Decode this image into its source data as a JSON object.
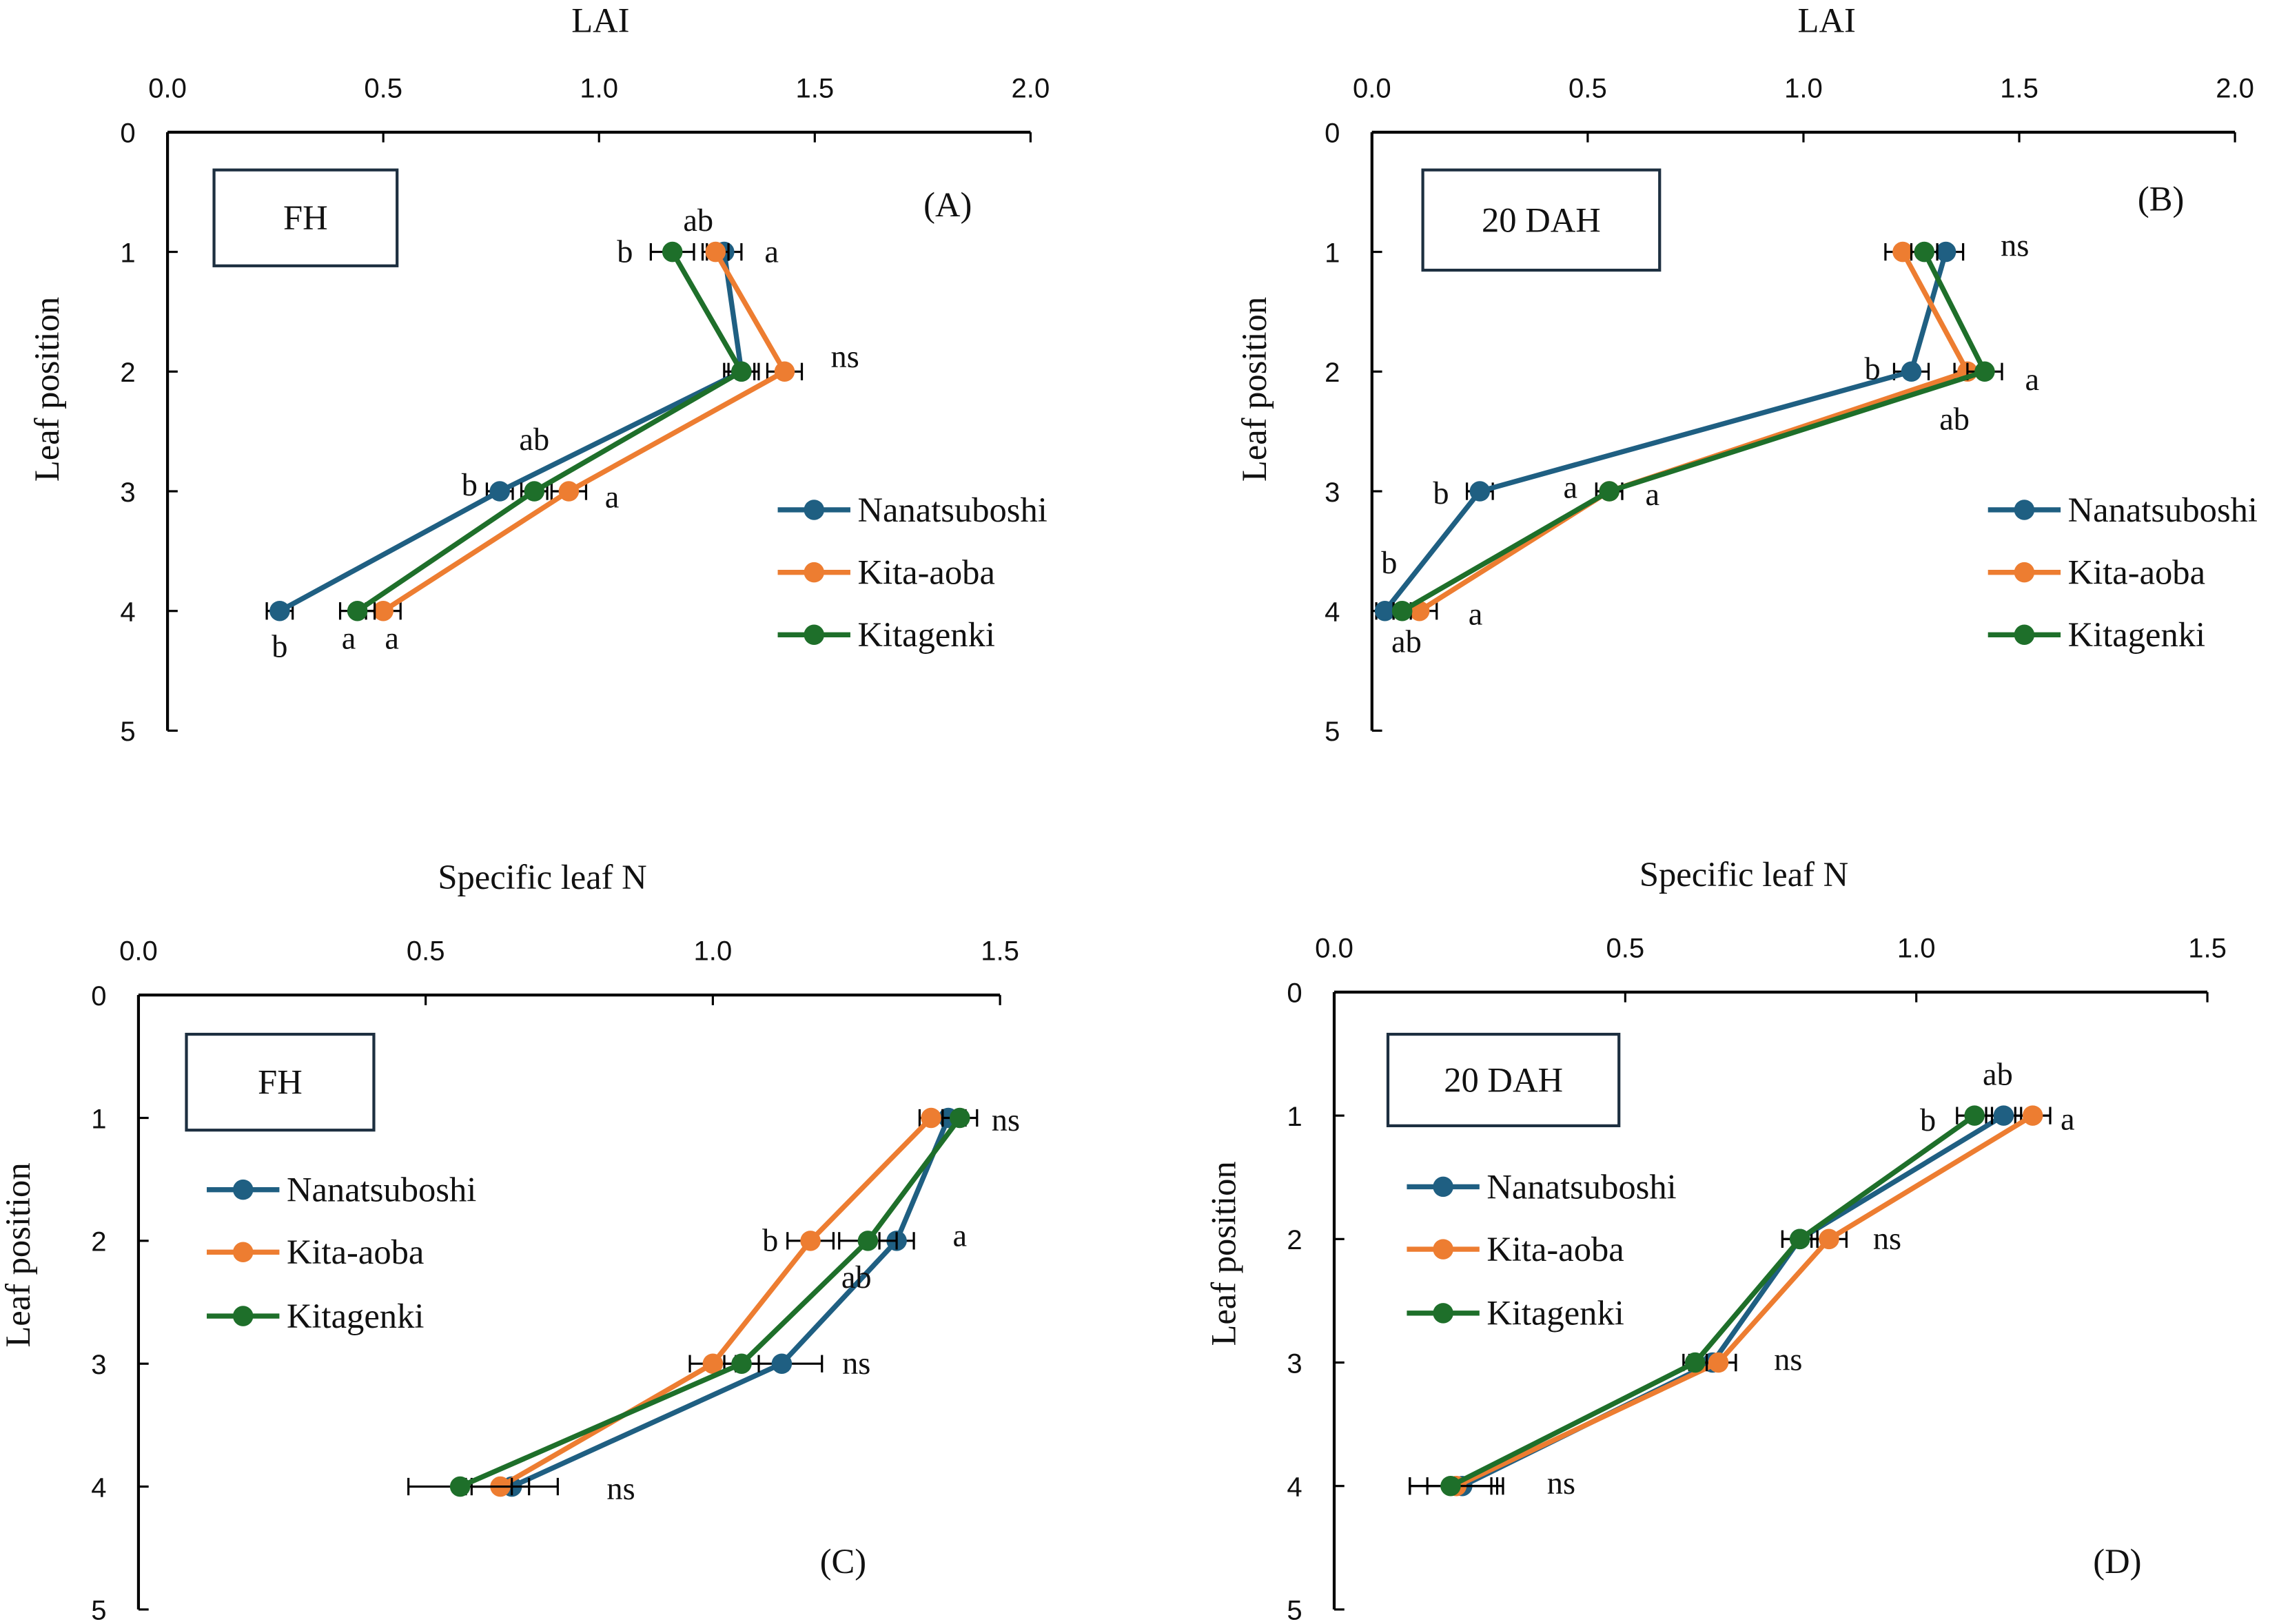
{
  "colors": {
    "Nanatsuboshi": "#1f5f82",
    "Kita-aoba": "#ed7d31",
    "Kitagenki": "#1e6f2a"
  },
  "chart_data": [
    {
      "type": "line",
      "panel": "(A)",
      "title": "FH",
      "xlabel": "LAI",
      "ylabel": "Leaf position",
      "xlim": [
        0,
        2.0
      ],
      "xticks": [
        "0.0",
        "0.5",
        "1.0",
        "1.5",
        "2.0"
      ],
      "ylim": [
        0,
        5
      ],
      "yticks": [
        "0",
        "1",
        "2",
        "3",
        "4",
        "5"
      ],
      "legend": [
        "Nanatsuboshi",
        "Kita-aoba",
        "Kitagenki"
      ],
      "legend_position": "right",
      "series": [
        {
          "name": "Nanatsuboshi",
          "x": [
            1.29,
            1.33,
            0.77,
            0.26
          ],
          "y": [
            1,
            2,
            3,
            4
          ],
          "err": [
            0.04,
            0.04,
            0.03,
            0.03
          ]
        },
        {
          "name": "Kita-aoba",
          "x": [
            1.27,
            1.43,
            0.93,
            0.5
          ],
          "y": [
            1,
            2,
            3,
            4
          ],
          "err": [
            0.03,
            0.04,
            0.04,
            0.04
          ]
        },
        {
          "name": "Kitagenki",
          "x": [
            1.17,
            1.33,
            0.85,
            0.44
          ],
          "y": [
            1,
            2,
            3,
            4
          ],
          "err": [
            0.05,
            0.03,
            0.03,
            0.04
          ]
        }
      ],
      "annotations": [
        {
          "text": "ab",
          "x": 1.23,
          "y": 0.74
        },
        {
          "text": "b",
          "x": 1.06,
          "y": 1.0
        },
        {
          "text": "a",
          "x": 1.4,
          "y": 1.0
        },
        {
          "text": "ns",
          "x": 1.57,
          "y": 1.88
        },
        {
          "text": "ab",
          "x": 0.85,
          "y": 2.57
        },
        {
          "text": "b",
          "x": 0.7,
          "y": 2.95
        },
        {
          "text": "a",
          "x": 1.03,
          "y": 3.05
        },
        {
          "text": "b",
          "x": 0.26,
          "y": 4.3
        },
        {
          "text": "a",
          "x": 0.42,
          "y": 4.23
        },
        {
          "text": "a",
          "x": 0.52,
          "y": 4.23
        }
      ]
    },
    {
      "type": "line",
      "panel": "(B)",
      "title": "20 DAH",
      "xlabel": "LAI",
      "ylabel": "Leaf position",
      "xlim": [
        0,
        2.0
      ],
      "xticks": [
        "0.0",
        "0.5",
        "1.0",
        "1.5",
        "2.0"
      ],
      "ylim": [
        0,
        5
      ],
      "yticks": [
        "0",
        "1",
        "2",
        "3",
        "4",
        "5"
      ],
      "legend": [
        "Nanatsuboshi",
        "Kita-aoba",
        "Kitagenki"
      ],
      "legend_position": "right",
      "series": [
        {
          "name": "Nanatsuboshi",
          "x": [
            1.33,
            1.25,
            0.25,
            0.03
          ],
          "y": [
            1,
            2,
            3,
            4
          ],
          "err": [
            0.04,
            0.04,
            0.03,
            0.02
          ]
        },
        {
          "name": "Kita-aoba",
          "x": [
            1.23,
            1.38,
            0.55,
            0.11
          ],
          "y": [
            1,
            2,
            3,
            4
          ],
          "err": [
            0.04,
            0.03,
            0.03,
            0.04
          ]
        },
        {
          "name": "Kitagenki",
          "x": [
            1.28,
            1.42,
            0.55,
            0.07
          ],
          "y": [
            1,
            2,
            3,
            4
          ],
          "err": [
            0.03,
            0.04,
            0.03,
            0.02
          ]
        }
      ],
      "annotations": [
        {
          "text": "ns",
          "x": 1.49,
          "y": 0.95
        },
        {
          "text": "b",
          "x": 1.16,
          "y": 1.98
        },
        {
          "text": "a",
          "x": 1.53,
          "y": 2.07
        },
        {
          "text": "ab",
          "x": 1.35,
          "y": 2.4
        },
        {
          "text": "b",
          "x": 0.16,
          "y": 3.02
        },
        {
          "text": "a",
          "x": 0.46,
          "y": 2.97
        },
        {
          "text": "a",
          "x": 0.65,
          "y": 3.03
        },
        {
          "text": "b",
          "x": 0.04,
          "y": 3.6
        },
        {
          "text": "a",
          "x": 0.24,
          "y": 4.03
        },
        {
          "text": "ab",
          "x": 0.08,
          "y": 4.26
        }
      ]
    },
    {
      "type": "line",
      "panel": "(C)",
      "title": "FH",
      "xlabel": "Specific leaf N",
      "ylabel": "Leaf position",
      "xlim": [
        0,
        1.5
      ],
      "xticks": [
        "0.0",
        "0.5",
        "1.0",
        "1.5"
      ],
      "ylim": [
        0,
        5
      ],
      "yticks": [
        "0",
        "1",
        "2",
        "3",
        "4",
        "5"
      ],
      "legend": [
        "Nanatsuboshi",
        "Kita-aoba",
        "Kitagenki"
      ],
      "legend_position": "left",
      "series": [
        {
          "name": "Nanatsuboshi",
          "x": [
            1.41,
            1.32,
            1.12,
            0.65
          ],
          "y": [
            1,
            2,
            3,
            4
          ],
          "err": [
            0.03,
            0.03,
            0.07,
            0.08
          ]
        },
        {
          "name": "Kita-aoba",
          "x": [
            1.38,
            1.17,
            1.0,
            0.63
          ],
          "y": [
            1,
            2,
            3,
            4
          ],
          "err": [
            0.02,
            0.04,
            0.04,
            0.05
          ]
        },
        {
          "name": "Kitagenki",
          "x": [
            1.43,
            1.27,
            1.05,
            0.56
          ],
          "y": [
            1,
            2,
            3,
            4
          ],
          "err": [
            0.03,
            0.05,
            0.03,
            0.09
          ]
        }
      ],
      "annotations": [
        {
          "text": "ns",
          "x": 1.51,
          "y": 1.02
        },
        {
          "text": "b",
          "x": 1.1,
          "y": 2.0
        },
        {
          "text": "a",
          "x": 1.43,
          "y": 1.96
        },
        {
          "text": "ab",
          "x": 1.25,
          "y": 2.3
        },
        {
          "text": "ns",
          "x": 1.25,
          "y": 3.0
        },
        {
          "text": "ns",
          "x": 0.84,
          "y": 4.02
        }
      ]
    },
    {
      "type": "line",
      "panel": "(D)",
      "title": "20 DAH",
      "xlabel": "Specific leaf N",
      "ylabel": "Leaf position",
      "xlim": [
        0,
        1.5
      ],
      "xticks": [
        "0.0",
        "0.5",
        "1.0",
        "1.5"
      ],
      "ylim": [
        0,
        5
      ],
      "yticks": [
        "0",
        "1",
        "2",
        "3",
        "4",
        "5"
      ],
      "legend": [
        "Nanatsuboshi",
        "Kita-aoba",
        "Kitagenki"
      ],
      "legend_position": "left",
      "series": [
        {
          "name": "Nanatsuboshi",
          "x": [
            1.15,
            0.8,
            0.65,
            0.22
          ],
          "y": [
            1,
            2,
            3,
            4
          ],
          "err": [
            0.03,
            0.03,
            0.04,
            0.06
          ]
        },
        {
          "name": "Kita-aoba",
          "x": [
            1.2,
            0.85,
            0.66,
            0.21
          ],
          "y": [
            1,
            2,
            3,
            4
          ],
          "err": [
            0.03,
            0.03,
            0.03,
            0.08
          ]
        },
        {
          "name": "Kitagenki",
          "x": [
            1.1,
            0.8,
            0.62,
            0.2
          ],
          "y": [
            1,
            2,
            3,
            4
          ],
          "err": [
            0.03,
            0.03,
            0.02,
            0.07
          ]
        }
      ],
      "annotations": [
        {
          "text": "ab",
          "x": 1.14,
          "y": 0.67
        },
        {
          "text": "b",
          "x": 1.02,
          "y": 1.04
        },
        {
          "text": "a",
          "x": 1.26,
          "y": 1.03
        },
        {
          "text": "ns",
          "x": 0.95,
          "y": 2.0
        },
        {
          "text": "ns",
          "x": 0.78,
          "y": 2.98
        },
        {
          "text": "ns",
          "x": 0.39,
          "y": 3.98
        }
      ]
    }
  ]
}
